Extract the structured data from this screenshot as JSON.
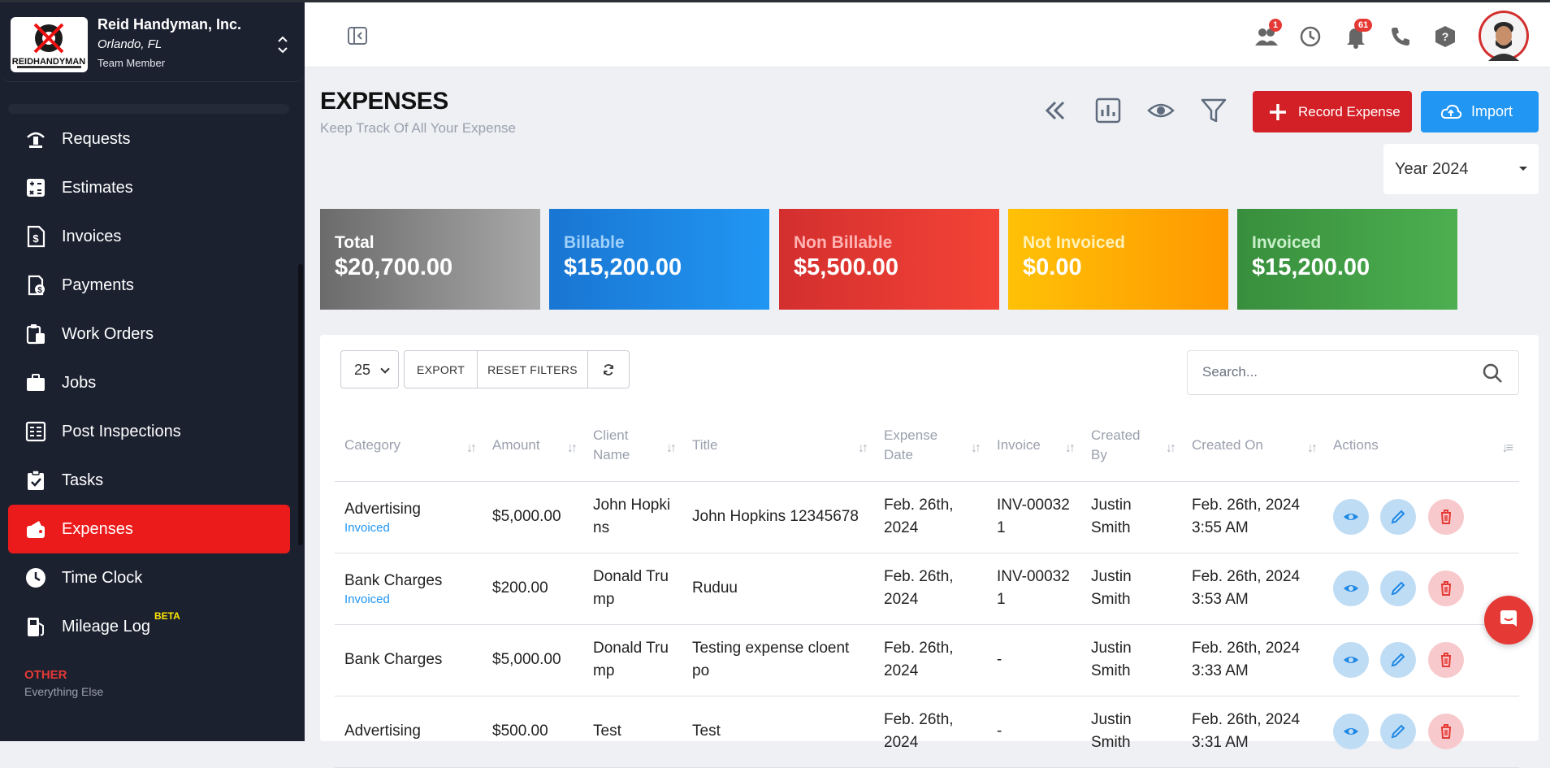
{
  "org": {
    "name": "Reid Handyman, Inc.",
    "city": "Orlando, FL",
    "role": "Team Member",
    "logo_text": "REIDHANDYMAN"
  },
  "sidebar": {
    "items": [
      {
        "label": "Requests",
        "icon": "requests-icon"
      },
      {
        "label": "Estimates",
        "icon": "calculator-icon"
      },
      {
        "label": "Invoices",
        "icon": "invoice-icon"
      },
      {
        "label": "Payments",
        "icon": "payments-icon"
      },
      {
        "label": "Work Orders",
        "icon": "clipboard-icon"
      },
      {
        "label": "Jobs",
        "icon": "briefcase-icon"
      },
      {
        "label": "Post Inspections",
        "icon": "inspection-icon"
      },
      {
        "label": "Tasks",
        "icon": "tasks-icon"
      },
      {
        "label": "Expenses",
        "icon": "wallet-icon",
        "active": true
      },
      {
        "label": "Time Clock",
        "icon": "clock-icon"
      },
      {
        "label": "Mileage Log",
        "icon": "fuel-icon",
        "badge": "BETA"
      }
    ],
    "other_title": "OTHER",
    "other_subtitle": "Everything Else"
  },
  "header": {
    "team_badge": "1",
    "notifications_badge": "61"
  },
  "page": {
    "title": "EXPENSES",
    "subtitle": "Keep Track Of All Your Expense",
    "record_button": "Record Expense",
    "import_button": "Import",
    "year_filter": "Year 2024"
  },
  "cards": [
    {
      "label": "Total",
      "value": "$20,700.00",
      "color_from": "#6b6b6b",
      "color_to": "#a8a8a8"
    },
    {
      "label": "Billable",
      "value": "$15,200.00",
      "color_from": "#1976d2",
      "color_to": "#2196f3"
    },
    {
      "label": "Non Billable",
      "value": "$5,500.00",
      "color_from": "#d32f2f",
      "color_to": "#f44336"
    },
    {
      "label": "Not Invoiced",
      "value": "$0.00",
      "color_from": "#ffc107",
      "color_to": "#ff9800"
    },
    {
      "label": "Invoiced",
      "value": "$15,200.00",
      "color_from": "#388e3c",
      "color_to": "#4caf50"
    }
  ],
  "table_controls": {
    "page_size": "25",
    "export": "EXPORT",
    "reset_filters": "RESET FILTERS",
    "search_placeholder": "Search..."
  },
  "table": {
    "headers": [
      "Category",
      "Amount",
      "Client Name",
      "Title",
      "Expense Date",
      "Invoice",
      "Created By",
      "Created On",
      "Actions"
    ],
    "rows": [
      {
        "category": "Advertising",
        "status": "Invoiced",
        "amount": "$5,000.00",
        "client": "John Hopkins",
        "title": "John Hopkins 12345678",
        "date": "Feb. 26th, 2024",
        "invoice": "INV-000321",
        "created_by": "Justin Smith",
        "created_on": "Feb. 26th, 2024 3:55 AM"
      },
      {
        "category": "Bank Charges",
        "status": "Invoiced",
        "amount": "$200.00",
        "client": "Donald Trump",
        "title": "Ruduu",
        "date": "Feb. 26th, 2024",
        "invoice": "INV-000321",
        "created_by": "Justin Smith",
        "created_on": "Feb. 26th, 2024 3:53 AM"
      },
      {
        "category": "Bank Charges",
        "status": "",
        "amount": "$5,000.00",
        "client": "Donald Trump",
        "title": "Testing expense cloent po",
        "date": "Feb. 26th, 2024",
        "invoice": "-",
        "created_by": "Justin Smith",
        "created_on": "Feb. 26th, 2024 3:33 AM"
      },
      {
        "category": "Advertising",
        "status": "",
        "amount": "$500.00",
        "client": "Test",
        "title": "Test",
        "date": "Feb. 26th, 2024",
        "invoice": "-",
        "created_by": "Justin Smith",
        "created_on": "Feb. 26th, 2024 3:31 AM"
      }
    ]
  }
}
